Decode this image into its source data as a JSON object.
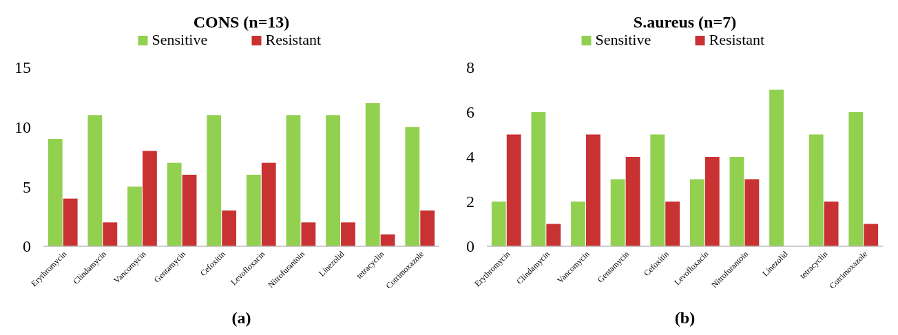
{
  "chart_data": [
    {
      "type": "bar",
      "title": "CONS (n=13)",
      "categories": [
        "Erythromycin",
        "Clindamycin",
        "Vancomycin",
        "Gentamycin",
        "Cefoxitin",
        "Levofloxacin",
        "Nitrofurantoin",
        "Linezolid",
        "tetracyclin",
        "Cotrimoxazole"
      ],
      "series": [
        {
          "name": "Sensitive",
          "color": "#92d050",
          "values": [
            9,
            11,
            5,
            7,
            11,
            6,
            11,
            11,
            12,
            10
          ]
        },
        {
          "name": "Resistant",
          "color": "#c83232",
          "values": [
            4,
            2,
            8,
            6,
            3,
            7,
            2,
            2,
            1,
            3
          ]
        }
      ],
      "ylim": [
        0,
        15
      ],
      "yticks": [
        0,
        5,
        10,
        15
      ],
      "grid": false,
      "legend": "top",
      "annotations": [
        "(a)"
      ]
    },
    {
      "type": "bar",
      "title": "S.aureus (n=7)",
      "categories": [
        "Erythromycin",
        "Clindamycin",
        "Vancomycin",
        "Gentamycin",
        "Cefoxitin",
        "Levofloxacin",
        "Nitrofurantoin",
        "Linezolid",
        "tetracyclin",
        "Cotrimoxazole"
      ],
      "series": [
        {
          "name": "Sensitive",
          "color": "#92d050",
          "values": [
            2,
            6,
            2,
            3,
            5,
            3,
            4,
            7,
            5,
            6
          ]
        },
        {
          "name": "Resistant",
          "color": "#c83232",
          "values": [
            5,
            1,
            5,
            4,
            2,
            4,
            3,
            0,
            2,
            1
          ]
        }
      ],
      "ylim": [
        0,
        8
      ],
      "yticks": [
        0,
        2,
        4,
        6,
        8
      ],
      "grid": false,
      "legend": "top",
      "annotations": [
        "(b)"
      ]
    }
  ]
}
